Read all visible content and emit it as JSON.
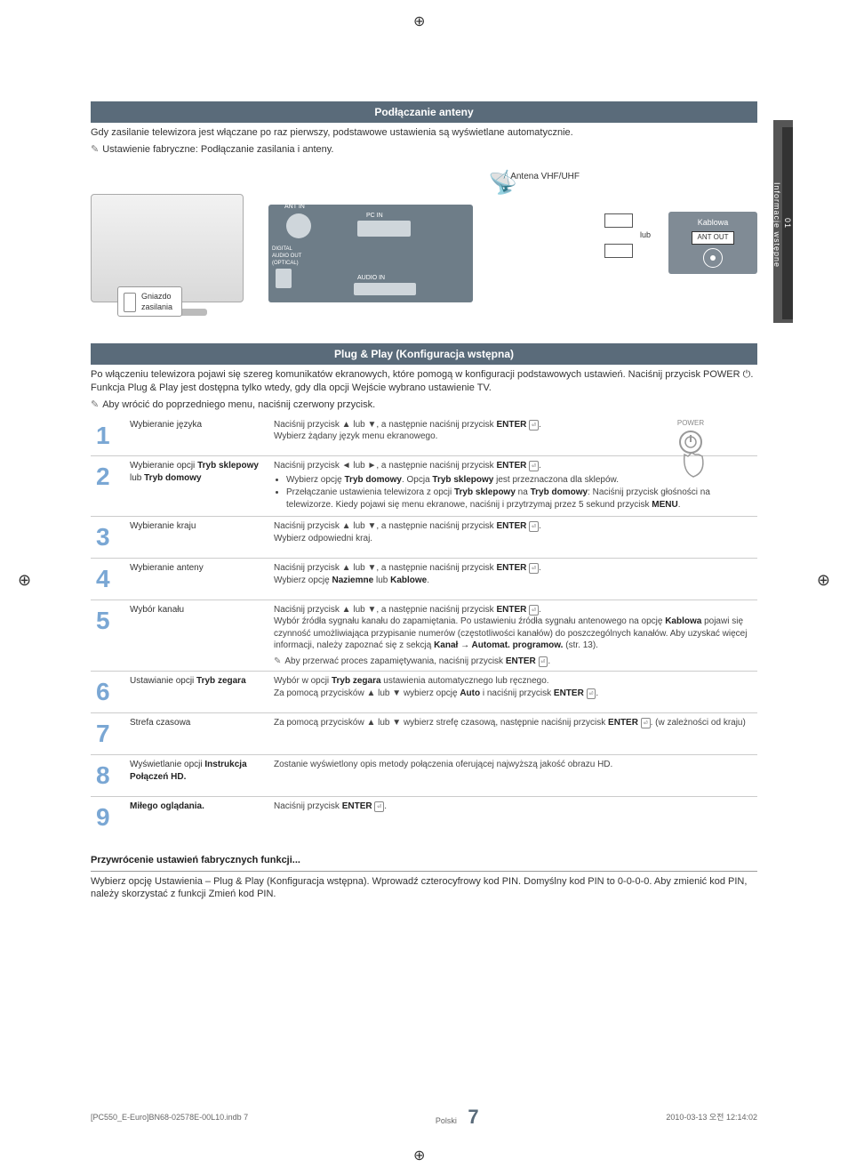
{
  "registration_glyph": "⊕",
  "side_tab": {
    "number": "01",
    "label": "Informacje wstępne"
  },
  "section1": {
    "title": "Podłączanie anteny",
    "intro": "Gdy zasilanie telewizora jest włączane po raz pierwszy, podstawowe ustawienia są wyświetlane automatycznie.",
    "note": "Ustawienie fabryczne: Podłączanie zasilania i anteny.",
    "diagram": {
      "plug": "Gniazdo\nzasilania",
      "antenna": "Antena VHF/UHF",
      "or": "lub",
      "cable": "Kablowa",
      "ant_out": "ANT OUT",
      "ant_in": "ANT IN",
      "pc_in": "PC IN",
      "dig_out": "DIGITAL\nAUDIO OUT\n(OPTICAL)",
      "audio_in": "AUDIO IN"
    }
  },
  "section2": {
    "title": "Plug & Play (Konfiguracja wstępna)",
    "intro": "Po włączeniu telewizora pojawi się szereg komunikatów ekranowych, które pomogą w konfiguracji podstawowych ustawień. Naciśnij przycisk POWER ⏻. Funkcja Plug & Play jest dostępna tylko wtedy, gdy dla opcji Wejście wybrano ustawienie TV.",
    "note": "Aby wrócić do poprzedniego menu, naciśnij czerwony przycisk.",
    "power_label": "POWER"
  },
  "steps": [
    {
      "n": "1",
      "label": "Wybieranie języka",
      "body": "Naciśnij przycisk ▲ lub ▼, a następnie naciśnij przycisk ENTER ⏎.\nWybierz żądany język menu ekranowego."
    },
    {
      "n": "2",
      "label": "Wybieranie opcji Tryb sklepowy lub Tryb domowy",
      "body": "Naciśnij przycisk ◄ lub ►, a następnie naciśnij przycisk ENTER ⏎.",
      "bullets": [
        "Wybierz opcję Tryb domowy. Opcja Tryb sklepowy jest przeznaczona dla sklepów.",
        "Przełączanie ustawienia telewizora z opcji Tryb sklepowy na Tryb domowy: Naciśnij przycisk głośności na telewizorze. Kiedy pojawi się menu ekranowe, naciśnij i przytrzymaj przez 5 sekund przycisk MENU."
      ]
    },
    {
      "n": "3",
      "label": "Wybieranie kraju",
      "body": "Naciśnij przycisk ▲ lub ▼, a następnie naciśnij przycisk ENTER ⏎.\nWybierz odpowiedni kraj."
    },
    {
      "n": "4",
      "label": "Wybieranie anteny",
      "body": "Naciśnij przycisk ▲ lub ▼, a następnie naciśnij przycisk ENTER ⏎.\nWybierz opcję Naziemne lub Kablowe."
    },
    {
      "n": "5",
      "label": "Wybór kanału",
      "body": "Naciśnij przycisk ▲ lub ▼, a następnie naciśnij przycisk ENTER ⏎.\nWybór źródła sygnału kanału do zapamiętania. Po ustawieniu źródła sygnału antenowego na opcję Kablowa pojawi się czynność umożliwiająca przypisanie numerów (częstotliwości kanałów) do poszczególnych kanałów. Aby uzyskać więcej informacji, należy zapoznać się z sekcją Kanał → Automat. programow. (str. 13).",
      "sub": "Aby przerwać proces zapamiętywania, naciśnij przycisk ENTER ⏎."
    },
    {
      "n": "6",
      "label": "Ustawianie opcji Tryb zegara",
      "body": "Wybór w opcji Tryb zegara ustawienia automatycznego lub ręcznego.\nZa pomocą przycisków ▲ lub ▼ wybierz opcję Auto i naciśnij przycisk ENTER ⏎."
    },
    {
      "n": "7",
      "label": "Strefa czasowa",
      "body": "Za pomocą przycisków ▲ lub ▼ wybierz strefę czasową, następnie naciśnij przycisk ENTER ⏎. (w zależności od kraju)"
    },
    {
      "n": "8",
      "label": "Wyświetlanie opcji Instrukcja Połączeń HD.",
      "body": "Zostanie wyświetlony opis metody połączenia oferującej najwyższą jakość obrazu HD."
    },
    {
      "n": "9",
      "label": "Miłego oglądania.",
      "body": "Naciśnij przycisk ENTER ⏎."
    }
  ],
  "reset": {
    "heading": "Przywrócenie ustawień fabrycznych funkcji...",
    "body": "Wybierz opcję Ustawienia – Plug & Play (Konfiguracja wstępna). Wprowadź czterocyfrowy kod PIN. Domyślny kod PIN to 0-0-0-0. Aby zmienić kod PIN, należy skorzystać z funkcji Zmień kod PIN."
  },
  "footer": {
    "file": "[PC550_E-Euro]BN68-02578E-00L10.indb   7",
    "date": "2010-03-13   오전 12:14:02",
    "lang": "Polski",
    "page": "7"
  },
  "colors": {
    "bar": "#5a6b7a",
    "step_num": "#7aa7d4",
    "panel": "#6e7d88",
    "cable": "#808b95"
  }
}
